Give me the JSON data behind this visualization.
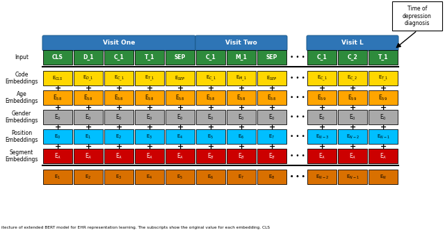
{
  "fig_width": 6.4,
  "fig_height": 3.41,
  "dpi": 100,
  "colors": {
    "blue": "#2E75B6",
    "green": "#2E8B3C",
    "yellow": "#FFD700",
    "orange_age": "#FFA500",
    "gray": "#A9A9A9",
    "cyan": "#00BFFF",
    "red": "#CC0000",
    "orange_bottom": "#D97000",
    "white": "#FFFFFF",
    "black": "#000000"
  },
  "input_cells": [
    {
      "label": "CLS",
      "col": 0
    },
    {
      "label": "D_1",
      "col": 1
    },
    {
      "label": "C_1",
      "col": 2
    },
    {
      "label": "T_1",
      "col": 3
    },
    {
      "label": "SEP",
      "col": 4
    },
    {
      "label": "C_1",
      "col": 5
    },
    {
      "label": "M_1",
      "col": 6
    },
    {
      "label": "SEP",
      "col": 7
    },
    {
      "label": "C_1",
      "col": 9
    },
    {
      "label": "C_2",
      "col": 10
    },
    {
      "label": "T_1",
      "col": 11
    }
  ],
  "code_cells": [
    {
      "label": "E$_{CLS}$",
      "col": 0
    },
    {
      "label": "E$_{D\\_1}$",
      "col": 1
    },
    {
      "label": "E$_{C\\_1}$",
      "col": 2
    },
    {
      "label": "E$_{T\\_1}$",
      "col": 3
    },
    {
      "label": "E$_{SEP}$",
      "col": 4
    },
    {
      "label": "E$_{C\\_1}$",
      "col": 5
    },
    {
      "label": "E$_{M\\_1}$",
      "col": 6
    },
    {
      "label": "E$_{SEP}$",
      "col": 7
    },
    {
      "label": "E$_{C\\_1}$",
      "col": 9
    },
    {
      "label": "E$_{C\\_2}$",
      "col": 10
    },
    {
      "label": "E$_{T\\_1}$",
      "col": 11
    }
  ],
  "age_cells": [
    {
      "label": "E$_{58}$",
      "col": 0
    },
    {
      "label": "E$_{58}$",
      "col": 1
    },
    {
      "label": "E$_{58}$",
      "col": 2
    },
    {
      "label": "E$_{58}$",
      "col": 3
    },
    {
      "label": "E$_{58}$",
      "col": 4
    },
    {
      "label": "E$_{58}$",
      "col": 5
    },
    {
      "label": "E$_{58}$",
      "col": 6
    },
    {
      "label": "E$_{58}$",
      "col": 7
    },
    {
      "label": "E$_{59}$",
      "col": 9
    },
    {
      "label": "E$_{59}$",
      "col": 10
    },
    {
      "label": "E$_{59}$",
      "col": 11
    }
  ],
  "gender_cells": [
    {
      "label": "E$_0$",
      "col": 0
    },
    {
      "label": "E$_0$",
      "col": 1
    },
    {
      "label": "E$_0$",
      "col": 2
    },
    {
      "label": "E$_0$",
      "col": 3
    },
    {
      "label": "E$_0$",
      "col": 4
    },
    {
      "label": "E$_0$",
      "col": 5
    },
    {
      "label": "E$_0$",
      "col": 6
    },
    {
      "label": "E$_0$",
      "col": 7
    },
    {
      "label": "E$_0$",
      "col": 9
    },
    {
      "label": "E$_0$",
      "col": 10
    },
    {
      "label": "E$_0$",
      "col": 11
    }
  ],
  "position_cells": [
    {
      "label": "E$_0$",
      "col": 0
    },
    {
      "label": "E$_1$",
      "col": 1
    },
    {
      "label": "E$_2$",
      "col": 2
    },
    {
      "label": "E$_3$",
      "col": 3
    },
    {
      "label": "E$_4$",
      "col": 4
    },
    {
      "label": "E$_5$",
      "col": 5
    },
    {
      "label": "E$_6$",
      "col": 6
    },
    {
      "label": "E$_7$",
      "col": 7
    },
    {
      "label": "E$_{N-3}$",
      "col": 9
    },
    {
      "label": "E$_{N-2}$",
      "col": 10
    },
    {
      "label": "E$_{N-1}$",
      "col": 11
    }
  ],
  "segment_cells": [
    {
      "label": "E$_A$",
      "col": 0
    },
    {
      "label": "E$_A$",
      "col": 1
    },
    {
      "label": "E$_A$",
      "col": 2
    },
    {
      "label": "E$_A$",
      "col": 3
    },
    {
      "label": "E$_A$",
      "col": 4
    },
    {
      "label": "E$_B$",
      "col": 5
    },
    {
      "label": "E$_B$",
      "col": 6
    },
    {
      "label": "E$_B$",
      "col": 7
    },
    {
      "label": "E$_A$",
      "col": 9
    },
    {
      "label": "E$_A$",
      "col": 10
    },
    {
      "label": "E$_A$",
      "col": 11
    }
  ],
  "bottom_cells": [
    {
      "label": "E$_1$",
      "col": 0
    },
    {
      "label": "E$_2$",
      "col": 1
    },
    {
      "label": "E$_3$",
      "col": 2
    },
    {
      "label": "E$_4$",
      "col": 3
    },
    {
      "label": "E$_5$",
      "col": 4
    },
    {
      "label": "E$_6$",
      "col": 5
    },
    {
      "label": "E$_7$",
      "col": 6
    },
    {
      "label": "E$_8$",
      "col": 7
    },
    {
      "label": "E$_{N-2}$",
      "col": 9
    },
    {
      "label": "E$_{N-1}$",
      "col": 10
    },
    {
      "label": "E$_N$",
      "col": 11
    }
  ],
  "caption": "itecture of extended BERT model for EHR representation learning. The subscripts show the original value for each embedding. CLS",
  "annotation_text": "Time of\ndepression\ndiagnosis"
}
